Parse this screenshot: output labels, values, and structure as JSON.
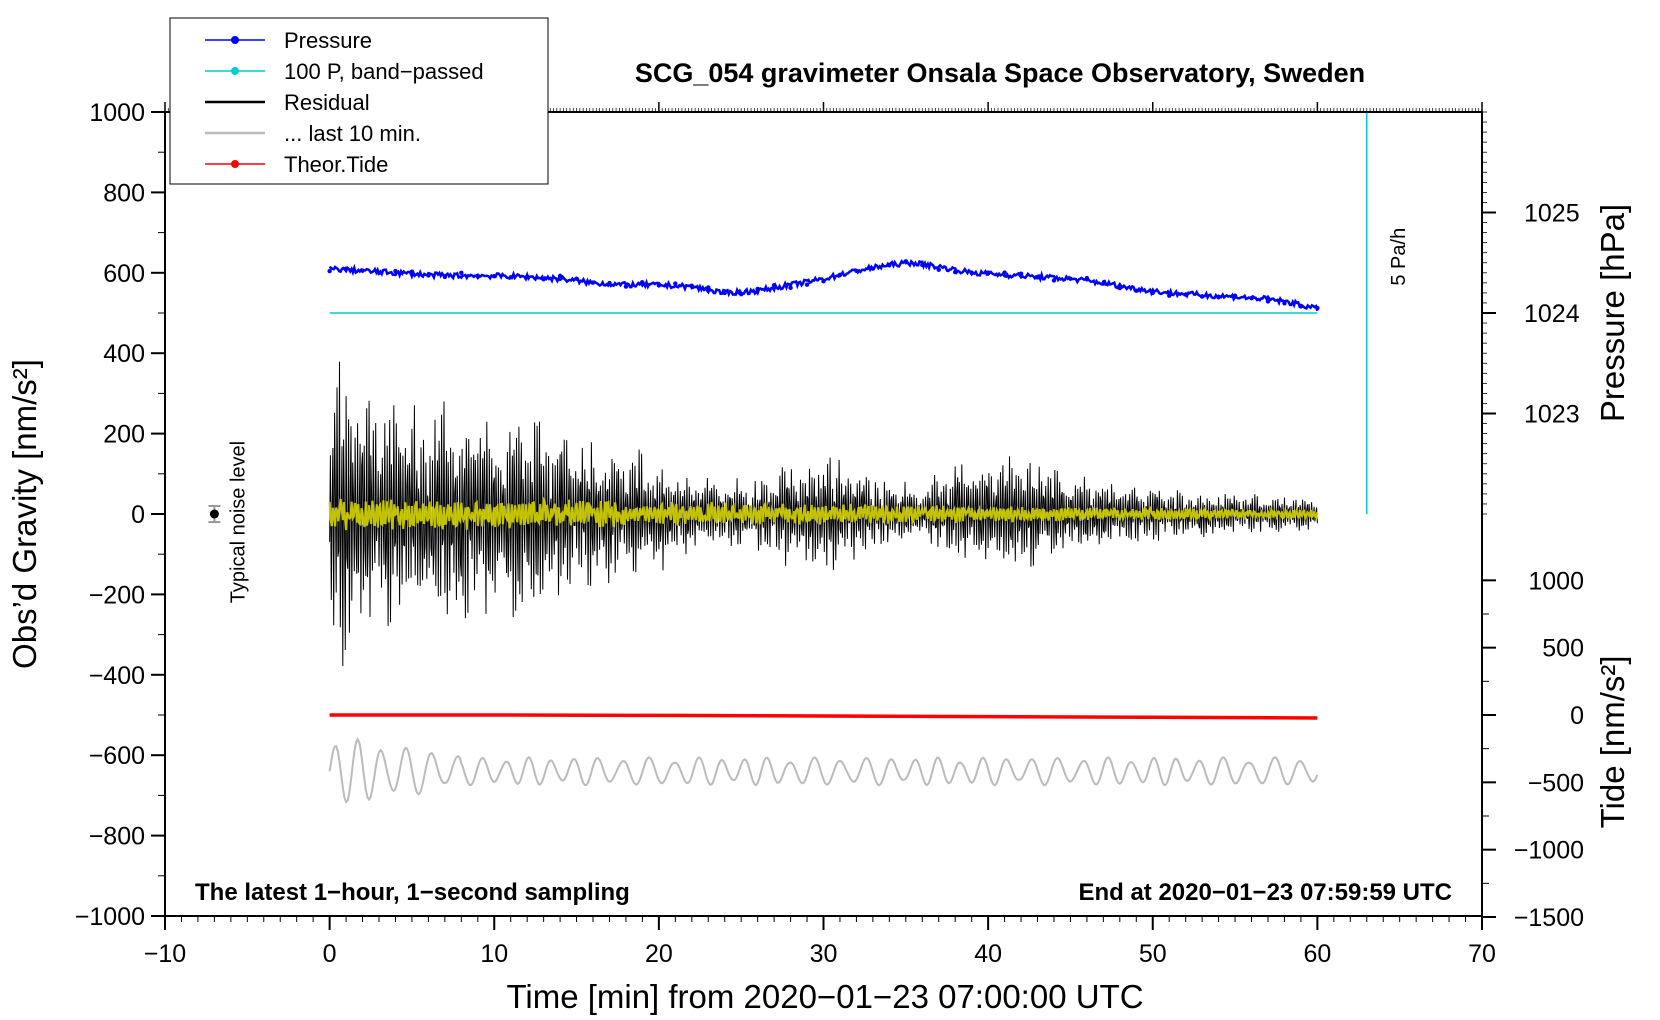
{
  "chart_data": {
    "type": "line",
    "title": "SCG_054 gravimeter Onsala Space Observatory, Sweden",
    "xlabel": "Time [min] from 2020−01−23 07:00:00 UTC",
    "ylabel_left": "Obs’d Gravity [nm/s²]",
    "ylabel_right_pressure": "Pressure [hPa]",
    "ylabel_right_tide": "Tide [nm/s²]",
    "xlim": [
      -10,
      70
    ],
    "ylim": [
      -1000,
      1000
    ],
    "x_ticks": [
      {
        "v": -10,
        "label": "−10"
      },
      {
        "v": 0,
        "label": "0"
      },
      {
        "v": 10,
        "label": "10"
      },
      {
        "v": 20,
        "label": "20"
      },
      {
        "v": 30,
        "label": "30"
      },
      {
        "v": 40,
        "label": "40"
      },
      {
        "v": 50,
        "label": "50"
      },
      {
        "v": 60,
        "label": "60"
      },
      {
        "v": 70,
        "label": "70"
      }
    ],
    "y_ticks": [
      {
        "v": 1000,
        "label": "1000"
      },
      {
        "v": 800,
        "label": "800"
      },
      {
        "v": 600,
        "label": "600"
      },
      {
        "v": 400,
        "label": "400"
      },
      {
        "v": 200,
        "label": "200"
      },
      {
        "v": 0,
        "label": "0"
      },
      {
        "v": -200,
        "label": "−200"
      },
      {
        "v": -400,
        "label": "−400"
      },
      {
        "v": -600,
        "label": "−600"
      },
      {
        "v": -800,
        "label": "−800"
      },
      {
        "v": -1000,
        "label": "−1000"
      }
    ],
    "pressure_axis": {
      "ticks": [
        {
          "v": 1025,
          "label": "1025"
        },
        {
          "v": 1024,
          "label": "1024"
        },
        {
          "v": 1023,
          "label": "1023"
        }
      ],
      "map": {
        "value_a": 1024,
        "gravity_a": 500,
        "value_b": 1025,
        "gravity_b": 750
      }
    },
    "tide_axis": {
      "ticks": [
        {
          "v": 1000,
          "label": "1000"
        },
        {
          "v": 500,
          "label": "500"
        },
        {
          "v": 0,
          "label": "0"
        },
        {
          "v": -500,
          "label": "−500"
        },
        {
          "v": -1000,
          "label": "−1000"
        },
        {
          "v": -1500,
          "label": "−1500"
        }
      ],
      "map": {
        "value_a": 0,
        "gravity_a": -500,
        "value_b": 1000,
        "gravity_b": -165
      }
    },
    "series": [
      {
        "name": "Pressure",
        "color": "#0000ff",
        "x": [
          0,
          2,
          4,
          6,
          8,
          10,
          12,
          14,
          16,
          18,
          20,
          22,
          24,
          26,
          28,
          30,
          32,
          34,
          35.5,
          37,
          39,
          41,
          43,
          45,
          47,
          49,
          51,
          53,
          55,
          57,
          58.5,
          60
        ],
        "y": [
          1024.44,
          1024.42,
          1024.4,
          1024.38,
          1024.37,
          1024.37,
          1024.36,
          1024.34,
          1024.3,
          1024.28,
          1024.28,
          1024.26,
          1024.2,
          1024.22,
          1024.28,
          1024.34,
          1024.42,
          1024.48,
          1024.5,
          1024.46,
          1024.4,
          1024.38,
          1024.36,
          1024.34,
          1024.3,
          1024.24,
          1024.2,
          1024.18,
          1024.16,
          1024.14,
          1024.1,
          1024.04
        ]
      },
      {
        "name": "100 P, band−passed",
        "color": "#00cccc",
        "x": [
          0,
          60
        ],
        "y": [
          500,
          500
        ]
      },
      {
        "name": "Residual",
        "color": "#000000",
        "x": [
          0,
          1,
          2,
          4,
          6,
          8,
          10,
          12,
          14,
          16,
          18,
          20,
          22,
          24,
          26,
          28,
          30,
          32,
          34,
          36,
          38,
          40,
          42,
          44,
          46,
          48,
          50,
          52,
          54,
          56,
          58,
          60
        ],
        "y": [
          400,
          414,
          330,
          300,
          310,
          290,
          260,
          300,
          250,
          190,
          180,
          150,
          110,
          90,
          100,
          140,
          170,
          130,
          90,
          80,
          140,
          150,
          160,
          130,
          100,
          90,
          80,
          60,
          65,
          55,
          50,
          45
        ]
      },
      {
        "name": "... last 10 min.",
        "color": "#bbbbbb",
        "x": [
          0,
          60
        ],
        "y": [
          -640,
          -640
        ]
      },
      {
        "name": "Theor.Tide",
        "color": "#ff0000",
        "x": [
          0,
          10,
          20,
          30,
          40,
          50,
          60
        ],
        "y": [
          0,
          0,
          -3,
          -7,
          -12,
          -17,
          -22
        ]
      }
    ],
    "noise_marker": {
      "x": -7,
      "y": 0,
      "err": 20,
      "label": "Typical noise level"
    },
    "scale_bar": {
      "x": 63,
      "y_from": 0,
      "y_to": 1000,
      "label": "5 Pa/h",
      "color": "#00cccc"
    },
    "note_left": "The latest 1−hour, 1−second sampling",
    "note_right": "End at 2020−01−23 07:59:59 UTC",
    "legend": [
      {
        "label": "Pressure",
        "color": "#0000ff",
        "marker": true
      },
      {
        "label": "100 P, band−passed",
        "color": "#00cccc",
        "marker": true
      },
      {
        "label": "Residual",
        "color": "#000000",
        "marker": false
      },
      {
        "label": "... last 10 min.",
        "color": "#bbbbbb",
        "marker": false
      },
      {
        "label": "Theor.Tide",
        "color": "#ff0000",
        "marker": true
      }
    ]
  }
}
